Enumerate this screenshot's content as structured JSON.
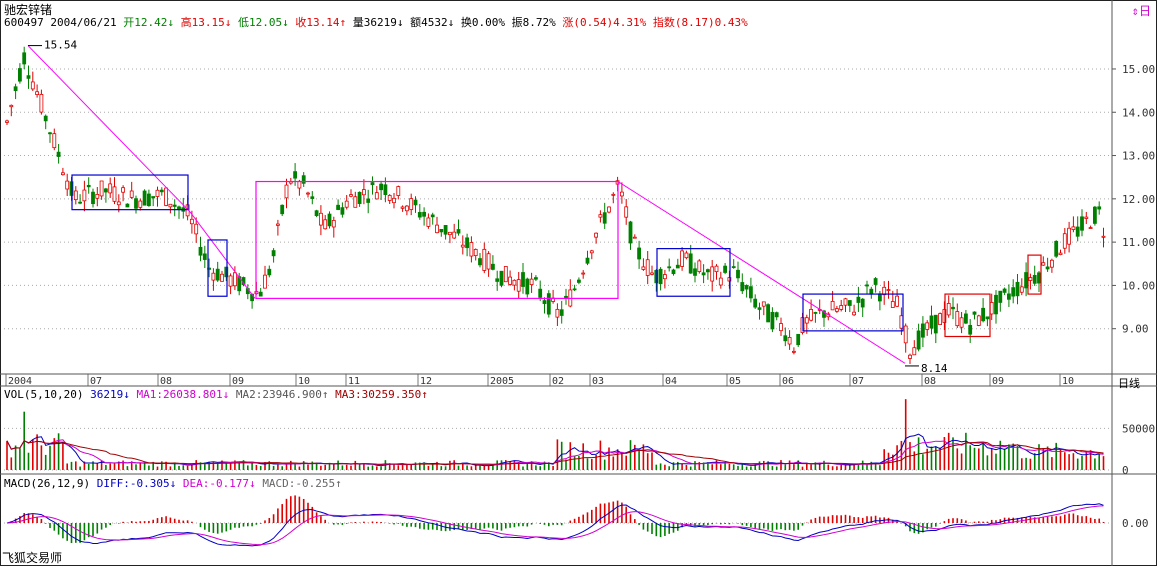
{
  "header": {
    "title": "驰宏锌锗",
    "code": "600497",
    "date": "2004/06/21",
    "open": "开12.42↓",
    "high": "高13.15↓",
    "low": "低12.05↓",
    "close": "收13.14↑",
    "volume": "量36219↓",
    "amount": "额4532↓",
    "turnover": "换0.00%",
    "amplitude": "振8.72%",
    "change": "涨(0.54)4.31%",
    "index": "指数(8.17)0.43%"
  },
  "top_right_icons": "⇕日",
  "footer_brand": "飞狐交易师",
  "vol_panel": {
    "label": "VOL(5,10,20)",
    "v": "36219↓",
    "ma1": "MA1:26038.801↓",
    "ma2": "MA2:23946.900↑",
    "ma3": "MA3:30259.350↑",
    "axis_labels": [
      "50000",
      "0"
    ]
  },
  "macd_panel": {
    "label": "MACD(26,12,9)",
    "diff": "DIFF:-0.305↓",
    "dea": "DEA:-0.177↓",
    "macd": "MACD:-0.255↑",
    "axis_labels": [
      "0.00"
    ]
  },
  "price_axis_label": "日线",
  "chart_data": {
    "type": "candlestick",
    "y_ticks": [
      15.0,
      14.0,
      13.0,
      12.0,
      11.0,
      10.0,
      9.0
    ],
    "ylim": [
      8.0,
      15.9
    ],
    "x_ticks": [
      "2004",
      "07",
      "08",
      "09",
      "10",
      "11",
      "12",
      "2005",
      "02",
      "03",
      "04",
      "05",
      "06",
      "07",
      "08",
      "09",
      "10"
    ],
    "annotations": [
      {
        "text": "15.54",
        "value": 15.54
      },
      {
        "text": "8.14",
        "value": 8.14
      }
    ],
    "colors": {
      "up": "#e00000",
      "down": "#008000",
      "trend": "#ff00ff",
      "box_blue": "#0000d0",
      "box_magenta": "#ff00ff",
      "box_red": "#e00000"
    }
  }
}
